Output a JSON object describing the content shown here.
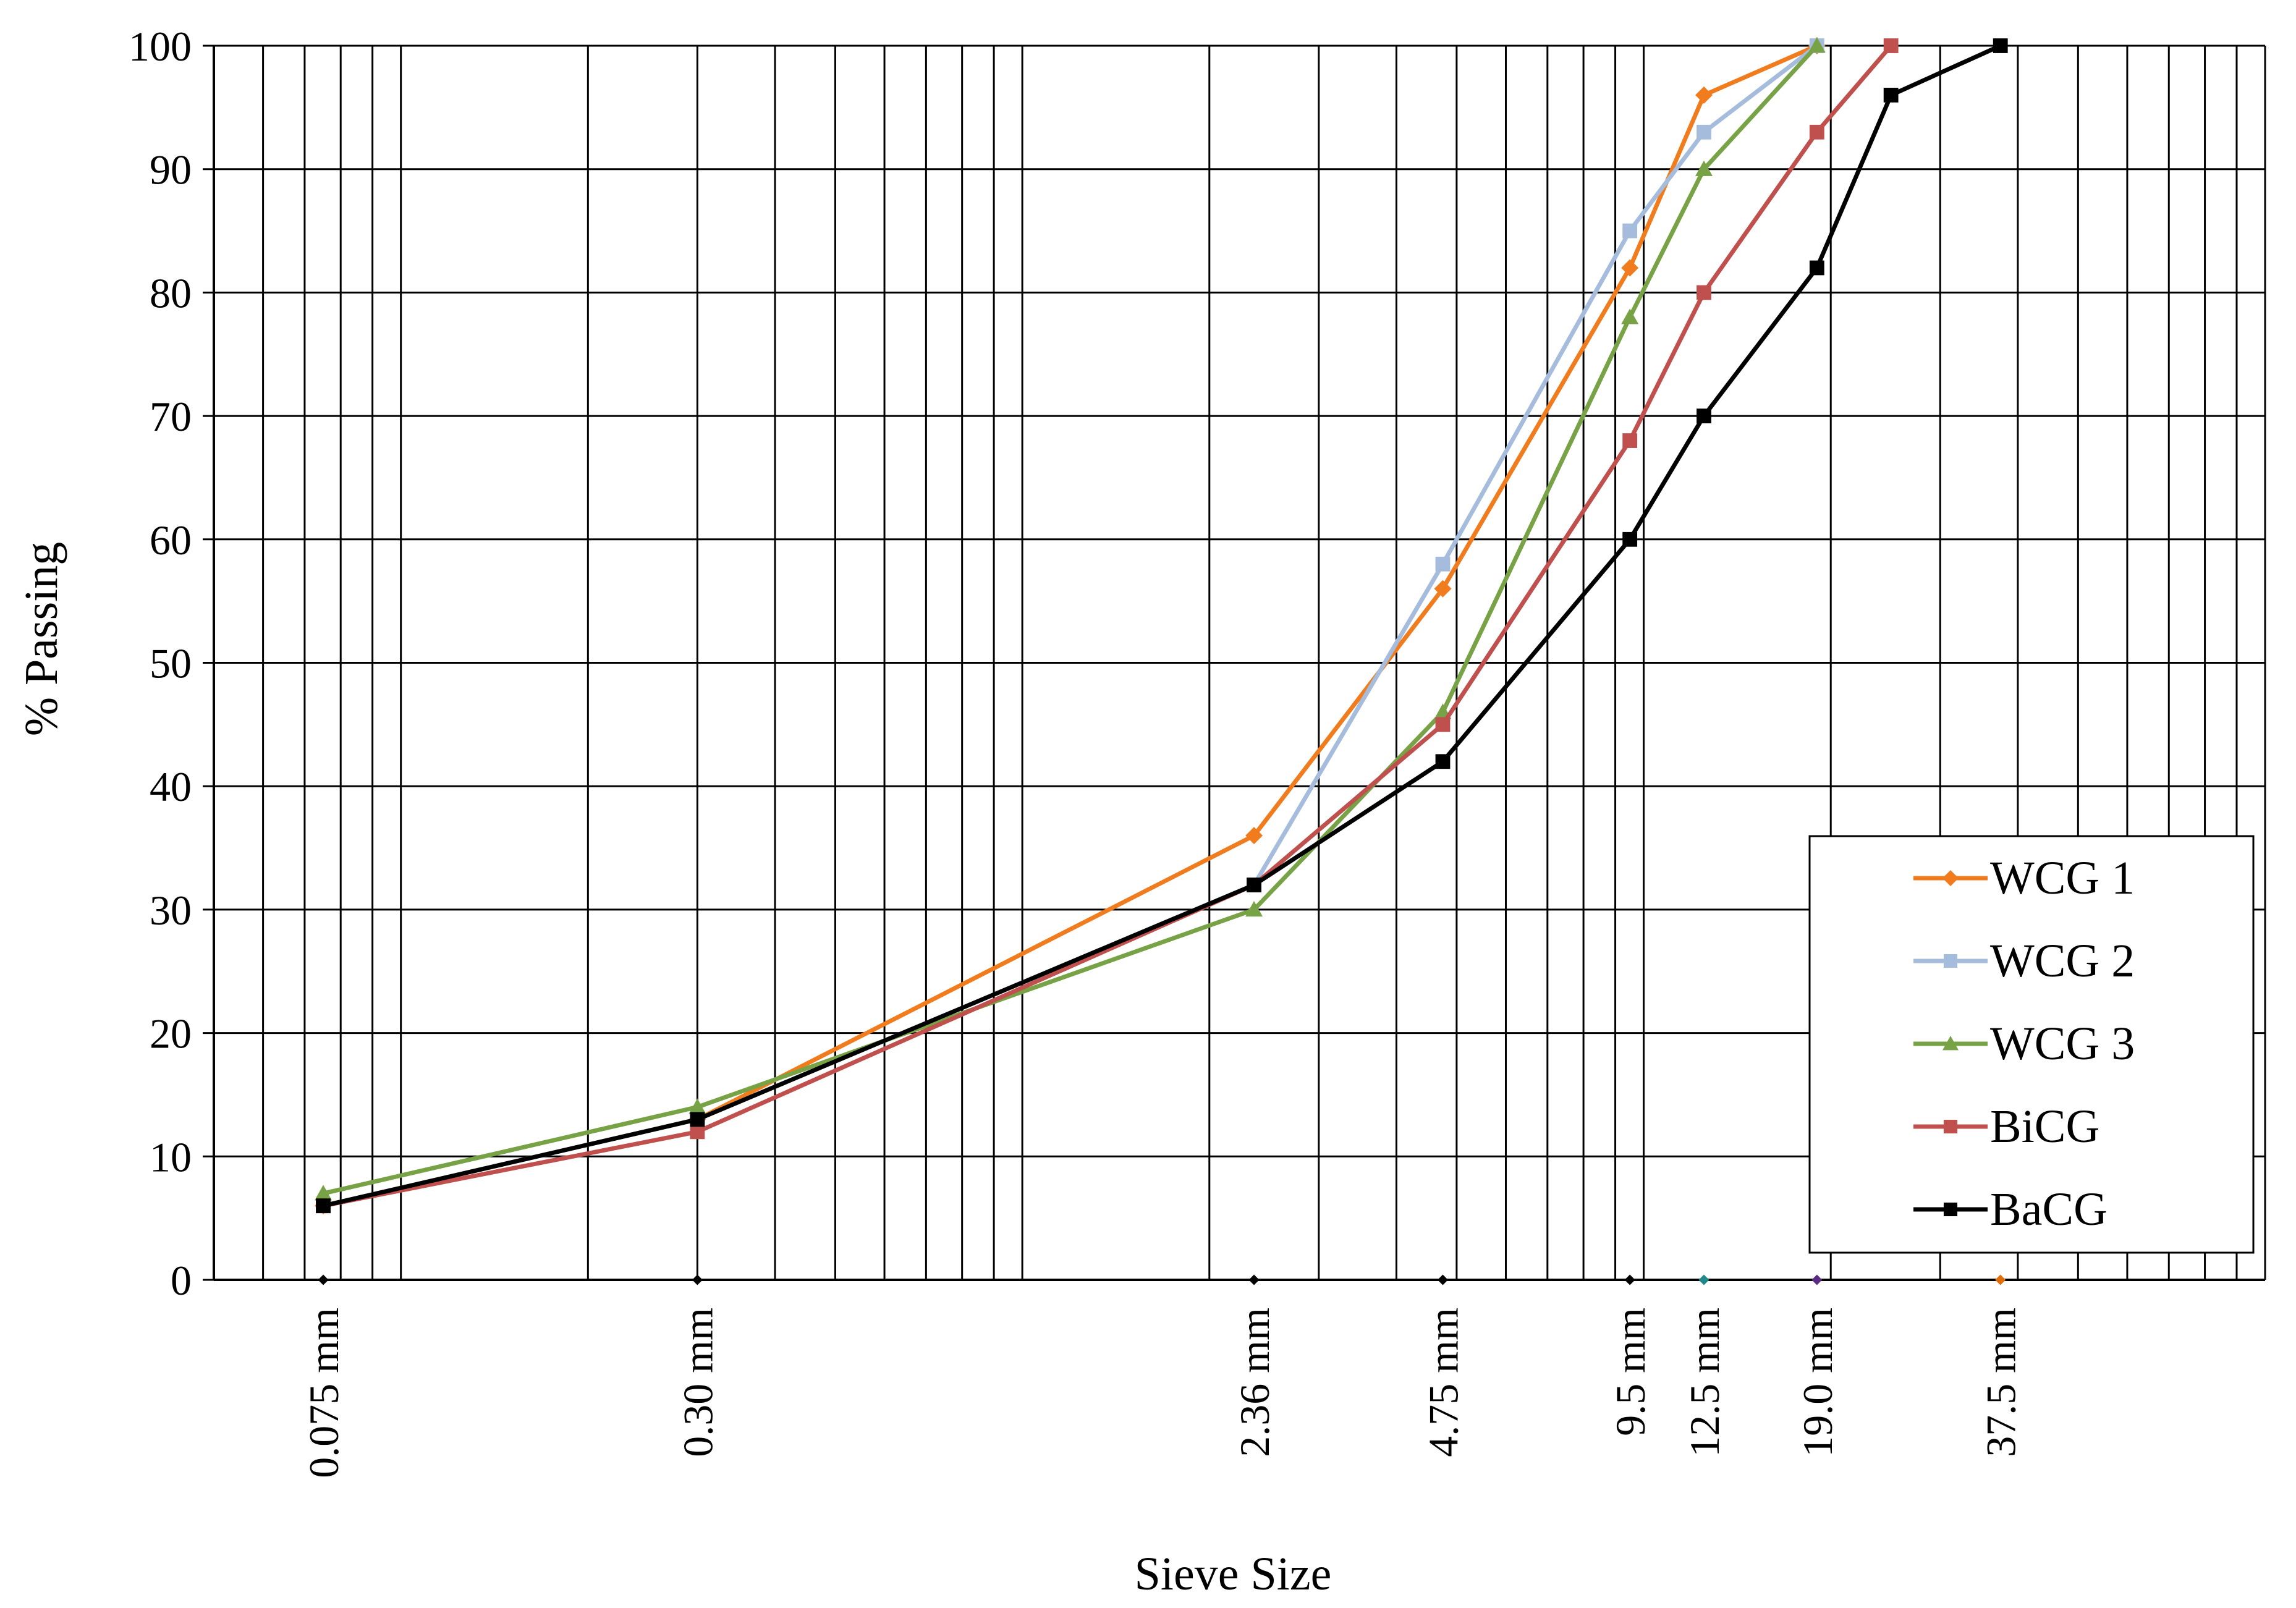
{
  "chart_data": {
    "type": "line",
    "title": "",
    "xlabel": "Sieve Size",
    "ylabel": "% Passing",
    "x_scale": "log",
    "xlim": [
      0.05,
      100
    ],
    "ylim": [
      0,
      100
    ],
    "y_ticks": [
      0,
      10,
      20,
      30,
      40,
      50,
      60,
      70,
      80,
      90,
      100
    ],
    "x_tick_values": [
      0.075,
      0.3,
      2.36,
      4.75,
      9.5,
      12.5,
      19.0,
      37.5
    ],
    "x_tick_labels": [
      "0.075 mm",
      "0.30 mm",
      "2.36 mm",
      "4.75 mm",
      "9.5 mm",
      "12.5 mm",
      "19.0 mm",
      "37.5 mm"
    ],
    "x_tick_marker_colors": [
      "#000000",
      "#000000",
      "#000000",
      "#000000",
      "#000000",
      "#1f8a8a",
      "#5b2c83",
      "#e36c0a"
    ],
    "grid": true,
    "legend_position": "bottom-right",
    "series": [
      {
        "name": "WCG 1",
        "color": "#f07c1d",
        "marker": "diamond",
        "x": [
          0.075,
          0.3,
          2.36,
          4.75,
          9.5,
          12.5,
          19.0
        ],
        "y": [
          6,
          13,
          36,
          56,
          82,
          96,
          100
        ]
      },
      {
        "name": "WCG 2",
        "color": "#a5bcdc",
        "marker": "square",
        "x": [
          0.075,
          0.3,
          2.36,
          4.75,
          9.5,
          12.5,
          19.0
        ],
        "y": [
          6,
          13,
          32,
          58,
          85,
          93,
          100
        ]
      },
      {
        "name": "WCG 3",
        "color": "#77a245",
        "marker": "triangle",
        "x": [
          0.075,
          0.3,
          2.36,
          4.75,
          9.5,
          12.5,
          19.0
        ],
        "y": [
          7,
          14,
          30,
          46,
          78,
          90,
          100
        ]
      },
      {
        "name": "BiCG",
        "color": "#c0504d",
        "marker": "square",
        "x": [
          0.075,
          0.3,
          2.36,
          4.75,
          9.5,
          12.5,
          19.0,
          25.0
        ],
        "y": [
          6,
          12,
          32,
          45,
          68,
          80,
          93,
          100
        ]
      },
      {
        "name": "BaCG",
        "color": "#000000",
        "marker": "square",
        "x": [
          0.075,
          0.3,
          2.36,
          4.75,
          9.5,
          12.5,
          19.0,
          25.0,
          37.5
        ],
        "y": [
          6,
          13,
          32,
          42,
          60,
          70,
          82,
          96,
          100
        ]
      }
    ]
  }
}
